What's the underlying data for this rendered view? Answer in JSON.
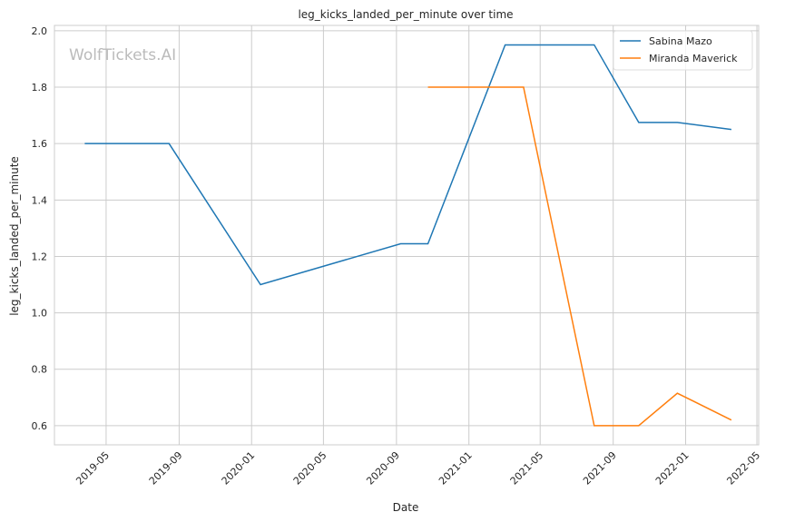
{
  "chart_data": {
    "type": "line",
    "title": "leg_kicks_landed_per_minute over time",
    "xlabel": "Date",
    "ylabel": "leg_kicks_landed_per_minute",
    "watermark": "WolfTickets.AI",
    "xlim": [
      "2019-02-03",
      "2022-05-04"
    ],
    "ylim": [
      0.532,
      2.019
    ],
    "grid": true,
    "legend_position": "top-right",
    "x_ticks": [
      "2019-05",
      "2019-09",
      "2020-01",
      "2020-05",
      "2020-09",
      "2021-01",
      "2021-05",
      "2021-09",
      "2022-01",
      "2022-05"
    ],
    "y_ticks": [
      0.6,
      0.8,
      1.0,
      1.2,
      1.4,
      1.6,
      1.8,
      2.0
    ],
    "series": [
      {
        "name": "Sabina Mazo",
        "color": "#1f77b4",
        "x": [
          "2019-03-26",
          "2019-08-15",
          "2020-01-16",
          "2020-09-08",
          "2020-10-24",
          "2021-03-03",
          "2021-07-31",
          "2021-10-14",
          "2021-12-18",
          "2022-03-19"
        ],
        "y": [
          1.6,
          1.6,
          1.1,
          1.245,
          1.245,
          1.95,
          1.95,
          1.675,
          1.675,
          1.65
        ]
      },
      {
        "name": "Miranda Maverick",
        "color": "#ff7f0e",
        "x": [
          "2020-10-24",
          "2021-04-03",
          "2021-07-31",
          "2021-10-14",
          "2021-12-18",
          "2022-03-19"
        ],
        "y": [
          1.8,
          1.8,
          0.6,
          0.6,
          0.715,
          0.62
        ]
      }
    ]
  }
}
